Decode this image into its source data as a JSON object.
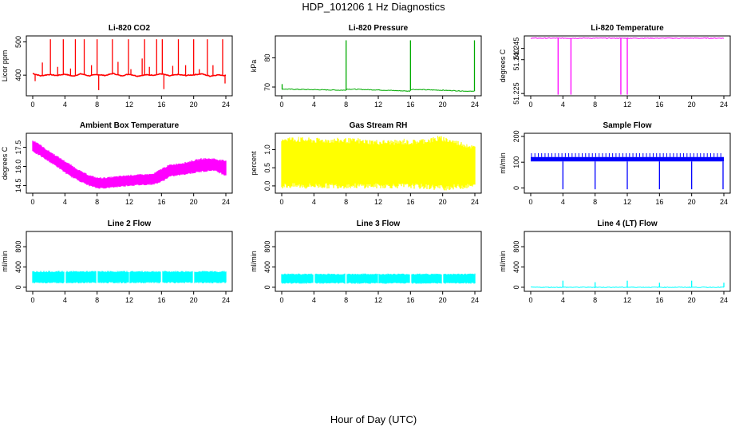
{
  "title": "HDP_101206  1 Hz Diagnostics",
  "xlabel": "Hour of Day (UTC)",
  "chart_data": [
    {
      "type": "line",
      "title": "Li-820 CO2",
      "xlabel": "",
      "ylabel": "Licor ppm",
      "color": "#ff0000",
      "xlim": [
        0,
        24
      ],
      "ylim": [
        338,
        518
      ],
      "xticks": [
        0,
        4,
        8,
        12,
        16,
        20,
        24
      ],
      "yticks": [
        400,
        500
      ],
      "ytick_labels": [
        "400",
        "500"
      ],
      "series": [
        {
          "baseline": [
            [
              0,
              405
            ],
            [
              1,
              398
            ],
            [
              2,
              402
            ],
            [
              3,
              399
            ],
            [
              4,
              403
            ],
            [
              5,
              397
            ],
            [
              6,
              404
            ],
            [
              7,
              398
            ],
            [
              8,
              402
            ],
            [
              9,
              399
            ],
            [
              10,
              405
            ],
            [
              11,
              398
            ],
            [
              12,
              403
            ],
            [
              13,
              397
            ],
            [
              14,
              401
            ],
            [
              15,
              400
            ],
            [
              16,
              404
            ],
            [
              17,
              398
            ],
            [
              18,
              402
            ],
            [
              19,
              399
            ],
            [
              20,
              401
            ],
            [
              21,
              404
            ],
            [
              22,
              397
            ],
            [
              23,
              401
            ],
            [
              24,
              399
            ]
          ],
          "spikes": [
            [
              0.3,
              382
            ],
            [
              1.2,
              438
            ],
            [
              2.2,
              508
            ],
            [
              3.1,
              425
            ],
            [
              3.8,
              508
            ],
            [
              4.7,
              420
            ],
            [
              5.3,
              508
            ],
            [
              6.4,
              508
            ],
            [
              7.3,
              430
            ],
            [
              8.0,
              508
            ],
            [
              8.2,
              355
            ],
            [
              9.9,
              508
            ],
            [
              10.6,
              440
            ],
            [
              11.9,
              508
            ],
            [
              12.2,
              418
            ],
            [
              13.6,
              450
            ],
            [
              13.9,
              508
            ],
            [
              14.5,
              425
            ],
            [
              15.4,
              508
            ],
            [
              16.1,
              508
            ],
            [
              16.3,
              358
            ],
            [
              17.4,
              428
            ],
            [
              18.1,
              508
            ],
            [
              19.0,
              430
            ],
            [
              20.0,
              508
            ],
            [
              20.7,
              418
            ],
            [
              21.7,
              508
            ],
            [
              22.4,
              430
            ],
            [
              23.6,
              508
            ],
            [
              23.9,
              375
            ]
          ]
        }
      ]
    },
    {
      "type": "line",
      "title": "Li-820 Pressure",
      "xlabel": "",
      "ylabel": "kPa",
      "color": "#00aa00",
      "xlim": [
        0,
        24
      ],
      "ylim": [
        67,
        87.5
      ],
      "xticks": [
        0,
        4,
        8,
        12,
        16,
        20,
        24
      ],
      "yticks": [
        70,
        80
      ],
      "ytick_labels": [
        "70",
        "80"
      ],
      "series": [
        {
          "baseline": [
            [
              0,
              69.3
            ],
            [
              4,
              69.1
            ],
            [
              7.9,
              68.9
            ],
            [
              8.1,
              69.3
            ],
            [
              12,
              69.0
            ],
            [
              15.9,
              68.6
            ],
            [
              16.1,
              69.2
            ],
            [
              20,
              68.9
            ],
            [
              23.9,
              68.5
            ],
            [
              24,
              69.0
            ]
          ],
          "spikes": [
            [
              0.05,
              71
            ],
            [
              8.0,
              86
            ],
            [
              16.0,
              86
            ],
            [
              23.95,
              86
            ]
          ]
        }
      ]
    },
    {
      "type": "line",
      "title": "Li-820 Temperature",
      "xlabel": "",
      "ylabel": "degrees C",
      "color": "#ff00ff",
      "xlim": [
        0,
        24
      ],
      "ylim": [
        51.224,
        51.2505
      ],
      "xticks": [
        0,
        4,
        8,
        12,
        16,
        20,
        24
      ],
      "yticks": [
        51.225,
        51.24,
        51.245
      ],
      "ytick_labels": [
        "51.225",
        "51.240",
        "51.245"
      ],
      "series": [
        {
          "baseline": [
            [
              0,
              51.2495
            ],
            [
              24,
              51.2495
            ]
          ],
          "spikes": [
            [
              3.4,
              51.2245
            ],
            [
              5.0,
              51.2245
            ],
            [
              11.2,
              51.2245
            ],
            [
              12.0,
              51.2245
            ]
          ]
        }
      ]
    },
    {
      "type": "area",
      "title": "Ambient Box Temperature",
      "xlabel": "",
      "ylabel": "degrees C",
      "color": "#ff00ff",
      "xlim": [
        0,
        24
      ],
      "ylim": [
        13.9,
        18.6
      ],
      "xticks": [
        0,
        4,
        8,
        12,
        16,
        20,
        24
      ],
      "yticks": [
        14.5,
        16.0,
        17.5
      ],
      "ytick_labels": [
        "14.5",
        "16.0",
        "17.5"
      ],
      "series": [
        {
          "band": [
            [
              0,
              17.2,
              18.0
            ],
            [
              0.5,
              17.0,
              17.9
            ],
            [
              1.5,
              16.6,
              17.4
            ],
            [
              3,
              16.0,
              16.8
            ],
            [
              4.5,
              15.3,
              16.2
            ],
            [
              6,
              14.8,
              15.6
            ],
            [
              7,
              14.5,
              15.3
            ],
            [
              8,
              14.3,
              15.1
            ],
            [
              9,
              14.3,
              15.1
            ],
            [
              12,
              14.5,
              15.3
            ],
            [
              15,
              14.6,
              15.4
            ],
            [
              16,
              14.8,
              15.8
            ],
            [
              17,
              15.2,
              16.1
            ],
            [
              19,
              15.4,
              16.3
            ],
            [
              21,
              15.6,
              16.6
            ],
            [
              22.5,
              15.7,
              16.6
            ],
            [
              24,
              15.3,
              16.4
            ]
          ]
        }
      ]
    },
    {
      "type": "area",
      "title": "Gas Stream RH",
      "xlabel": "",
      "ylabel": "percent",
      "color": "#ffff00",
      "xlim": [
        0,
        24
      ],
      "ylim": [
        -0.2,
        1.45
      ],
      "xticks": [
        0,
        4,
        8,
        12,
        16,
        20,
        24
      ],
      "yticks": [
        0.0,
        0.5,
        1.0
      ],
      "ytick_labels": [
        "0.0",
        "0.5",
        "1.0"
      ],
      "series": [
        {
          "band": [
            [
              0,
              0.0,
              1.3
            ],
            [
              4,
              0.0,
              1.25
            ],
            [
              8,
              0.0,
              1.25
            ],
            [
              12,
              0.0,
              1.2
            ],
            [
              16,
              0.0,
              1.2
            ],
            [
              20,
              -0.05,
              1.3
            ],
            [
              24,
              0.0,
              1.05
            ]
          ],
          "peaks": [
            [
              2.1,
              1.35
            ],
            [
              9.5,
              1.32
            ],
            [
              15.2,
              1.3
            ],
            [
              19.4,
              1.38
            ],
            [
              23.0,
              1.15
            ],
            [
              20.2,
              -0.12
            ],
            [
              3.0,
              -0.08
            ],
            [
              11.8,
              -0.07
            ]
          ]
        }
      ]
    },
    {
      "type": "line",
      "title": "Sample Flow",
      "xlabel": "",
      "ylabel": "ml/min",
      "color": "#0000ff",
      "xlim": [
        0,
        24
      ],
      "ylim": [
        -20,
        212
      ],
      "xticks": [
        0,
        4,
        8,
        12,
        16,
        20,
        24
      ],
      "yticks": [
        0,
        100,
        200
      ],
      "ytick_labels": [
        "0",
        "100",
        "200"
      ],
      "series": [
        {
          "band": [
            [
              0,
              103,
              120
            ],
            [
              24,
              103,
              120
            ]
          ],
          "spikes": [
            [
              4.0,
              -5
            ],
            [
              8.0,
              -5
            ],
            [
              12.0,
              -5
            ],
            [
              16.0,
              -5
            ],
            [
              20.0,
              -5
            ],
            [
              23.9,
              -5
            ]
          ],
          "ticks_top": 135
        }
      ]
    },
    {
      "type": "area",
      "title": "Line 2 Flow",
      "xlabel": "",
      "ylabel": "ml/min",
      "color": "#00ffff",
      "xlim": [
        0,
        24
      ],
      "ylim": [
        -80,
        1100
      ],
      "xticks": [
        0,
        4,
        8,
        12,
        16,
        20,
        24
      ],
      "yticks": [
        0,
        400,
        800
      ],
      "ytick_labels": [
        "0",
        "400",
        "800"
      ],
      "series": [
        {
          "band": [
            [
              0,
              90,
              310
            ],
            [
              24,
              90,
              310
            ]
          ],
          "gaps": [
            4.0,
            8.0,
            12.0,
            16.0,
            20.0
          ]
        }
      ]
    },
    {
      "type": "area",
      "title": "Line 3 Flow",
      "xlabel": "",
      "ylabel": "ml/min",
      "color": "#00ffff",
      "xlim": [
        0,
        24
      ],
      "ylim": [
        -80,
        1100
      ],
      "xticks": [
        0,
        4,
        8,
        12,
        16,
        20,
        24
      ],
      "yticks": [
        0,
        400,
        800
      ],
      "ytick_labels": [
        "0",
        "400",
        "800"
      ],
      "series": [
        {
          "band": [
            [
              0,
              80,
              260
            ],
            [
              24,
              80,
              260
            ]
          ],
          "gaps": [
            4.0,
            8.0,
            12.0,
            16.0,
            20.0
          ]
        }
      ]
    },
    {
      "type": "line",
      "title": "Line 4 (LT) Flow",
      "xlabel": "",
      "ylabel": "ml/min",
      "color": "#00ffff",
      "xlim": [
        0,
        24
      ],
      "ylim": [
        -80,
        1100
      ],
      "xticks": [
        0,
        4,
        8,
        12,
        16,
        20,
        24
      ],
      "yticks": [
        0,
        400,
        800
      ],
      "ytick_labels": [
        "0",
        "400",
        "800"
      ],
      "series": [
        {
          "baseline": [
            [
              0,
              0
            ],
            [
              24,
              0
            ]
          ],
          "spikes": [
            [
              4.0,
              130
            ],
            [
              8.0,
              100
            ],
            [
              12.0,
              130
            ],
            [
              16.0,
              90
            ],
            [
              20.0,
              130
            ],
            [
              24.0,
              90
            ]
          ]
        }
      ]
    }
  ]
}
